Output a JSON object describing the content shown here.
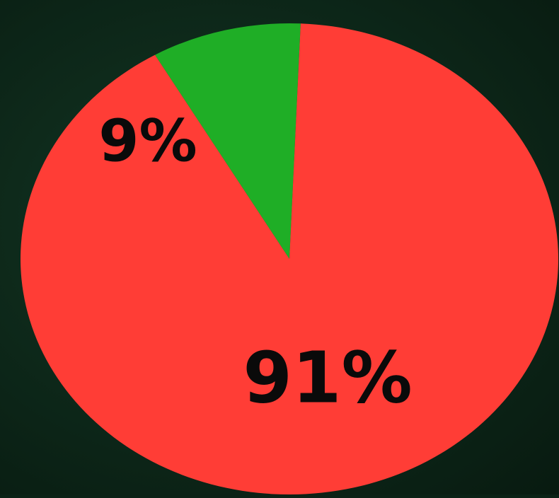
{
  "chart_data": {
    "type": "pie",
    "categories": [
      "",
      ""
    ],
    "values": [
      9,
      91
    ],
    "labels": [
      "9%",
      "91%"
    ],
    "colors": [
      "#1fae26",
      "#ff3d36"
    ],
    "label_color": "#0a0a0a",
    "title": "",
    "legend": "none"
  },
  "background_color": "#0b2216"
}
